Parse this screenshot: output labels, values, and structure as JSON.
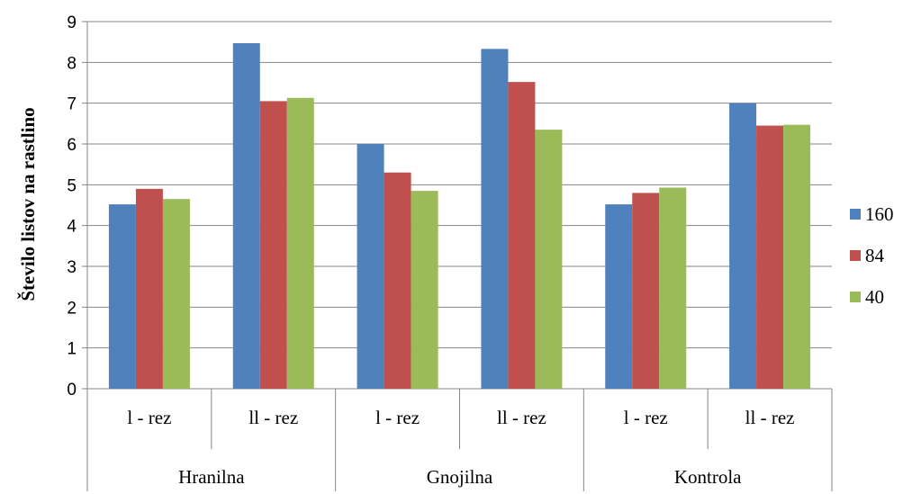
{
  "chart_data": {
    "type": "bar",
    "ylabel": "Število listov na rastlino",
    "xlabel": "",
    "ylim": [
      0,
      9
    ],
    "yticks": [
      "0",
      "1",
      "2",
      "3",
      "4",
      "5",
      "6",
      "7",
      "8",
      "9"
    ],
    "grid": true,
    "legend_position": "right",
    "categories": [
      "l - rez",
      "ll - rez",
      "l - rez",
      "ll - rez",
      "l - rez",
      "ll - rez"
    ],
    "groups": [
      {
        "label": "Hranilna",
        "span": 2
      },
      {
        "label": "Gnojilna",
        "span": 2
      },
      {
        "label": "Kontrola",
        "span": 2
      }
    ],
    "series": [
      {
        "name": "160",
        "color": "#4F81BD",
        "values": [
          4.52,
          8.47,
          6.0,
          8.33,
          4.52,
          7.0
        ]
      },
      {
        "name": "84",
        "color": "#C0504D",
        "values": [
          4.9,
          7.05,
          5.3,
          7.52,
          4.8,
          6.45
        ]
      },
      {
        "name": "40",
        "color": "#9BBB59",
        "values": [
          4.65,
          7.13,
          4.85,
          6.35,
          4.93,
          6.47
        ]
      }
    ]
  }
}
